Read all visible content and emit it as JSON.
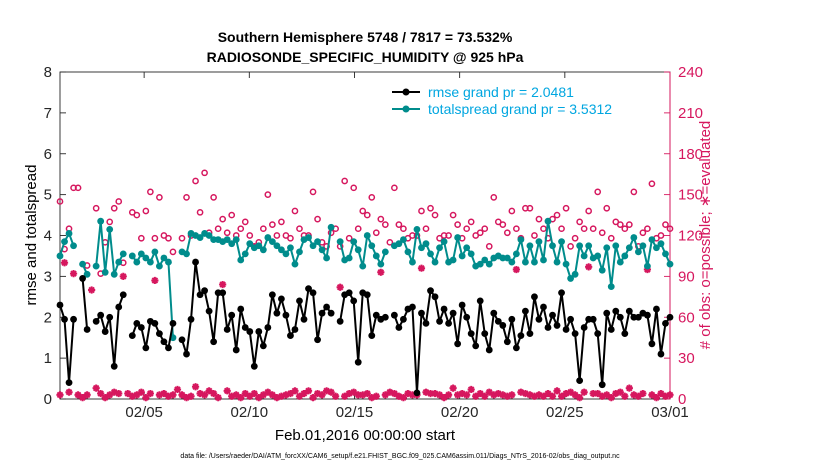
{
  "chart_data": {
    "type": "line",
    "title": "Southern Hemisphere 5748 / 7817 = 73.532%",
    "subtitle": "RADIOSONDE_SPECIFIC_HUMIDITY @ 925 hPa",
    "xlabel": "Feb.01,2016 00:00:00 start",
    "ylabel": "rmse and totalspread",
    "ylabel_right": "# of obs: o=possible; ∗=evaluated",
    "footnote": "data file: /Users/raeder/DAI/ATM_forcXX/CAM6_setup/f.e21.FHIST_BGC.f09_025.CAM6assim.011/Diags_NTrS_2016-02/obs_diag_output.nc",
    "x_ticks": [
      "02/05",
      "02/10",
      "02/15",
      "02/20",
      "02/25",
      "03/01"
    ],
    "x_tick_days": [
      4,
      9,
      14,
      19,
      24,
      29
    ],
    "xlim": [
      0.0,
      29.0
    ],
    "ylim": [
      0,
      8
    ],
    "y_ticks": [
      "0",
      "1",
      "2",
      "3",
      "4",
      "5",
      "6",
      "7",
      "8"
    ],
    "y2lim": [
      0,
      240
    ],
    "y2_ticks": [
      "0",
      "30",
      "60",
      "90",
      "120",
      "150",
      "180",
      "210",
      "240"
    ],
    "legend_position": "top-right",
    "colors": {
      "rmse": "#000000",
      "totalspread": "#008c8c",
      "obs": "#d6175e",
      "legend_text": "#00a6e0",
      "right_axis": "#d6175e"
    },
    "series": [
      {
        "name": "rmse grand pr = 2.0481",
        "key": "rmse",
        "values": [
          2.3,
          1.95,
          0.4,
          1.95,
          null,
          2.95,
          1.7,
          null,
          1.9,
          2.05,
          1.65,
          2.0,
          0.8,
          2.25,
          2.55,
          null,
          1.55,
          1.85,
          1.75,
          1.25,
          1.9,
          1.85,
          1.6,
          1.4,
          1.25,
          1.85,
          null,
          1.45,
          1.1,
          1.95,
          3.35,
          2.55,
          2.65,
          2.15,
          1.4,
          2.6,
          2.6,
          1.7,
          2.05,
          1.2,
          2.2,
          1.75,
          1.65,
          0.8,
          1.65,
          1.3,
          1.75,
          2.55,
          2.1,
          2.45,
          2.05,
          1.55,
          1.7,
          2.4,
          1.95,
          2.7,
          2.6,
          1.45,
          2.1,
          2.25,
          2.1,
          null,
          1.9,
          2.55,
          2.6,
          2.4,
          0.9,
          2.6,
          2.55,
          1.55,
          2.05,
          1.95,
          2.0,
          null,
          2.05,
          1.75,
          1.95,
          2.2,
          2.25,
          0.15,
          2.1,
          1.85,
          2.65,
          2.5,
          1.9,
          2.2,
          1.85,
          2.1,
          1.35,
          2.3,
          2.0,
          1.6,
          1.3,
          2.4,
          1.6,
          1.2,
          2.1,
          1.9,
          1.8,
          1.4,
          1.95,
          1.25,
          1.55,
          2.15,
          1.6,
          2.5,
          1.95,
          2.25,
          1.75,
          2.05,
          1.8,
          2.6,
          1.7,
          1.95,
          1.6,
          0.45,
          1.75,
          1.95,
          1.95,
          1.6,
          0.35,
          2.1,
          1.7,
          2.15,
          2.0,
          1.6,
          2.15,
          2.0,
          2.0,
          2.1,
          2.05,
          1.35,
          2.2,
          1.1,
          1.85,
          2.0
        ]
      },
      {
        "name": "totalspread grand pr = 3.5312",
        "key": "totalspread",
        "values": [
          3.5,
          3.85,
          4.05,
          3.75,
          null,
          3.3,
          3.05,
          null,
          3.25,
          4.35,
          3.1,
          4.15,
          3.05,
          3.35,
          3.55,
          null,
          3.5,
          3.35,
          3.55,
          3.45,
          3.35,
          3.6,
          3.25,
          3.45,
          3.35,
          1.5,
          null,
          3.6,
          3.55,
          4.05,
          4.0,
          3.95,
          4.05,
          4.0,
          3.9,
          3.9,
          3.85,
          3.9,
          3.8,
          3.9,
          3.4,
          3.55,
          3.8,
          3.7,
          3.75,
          3.65,
          3.95,
          3.85,
          3.75,
          3.65,
          3.55,
          3.7,
          3.3,
          3.6,
          3.9,
          3.95,
          3.75,
          3.85,
          3.65,
          3.45,
          4.2,
          null,
          3.85,
          3.4,
          3.45,
          3.85,
          3.65,
          3.25,
          4.0,
          3.75,
          3.5,
          3.3,
          3.6,
          null,
          3.75,
          3.8,
          3.9,
          3.6,
          3.35,
          4.15,
          3.7,
          3.8,
          3.55,
          3.35,
          3.7,
          3.85,
          3.35,
          3.4,
          3.95,
          3.5,
          3.7,
          3.55,
          3.25,
          3.3,
          3.4,
          3.3,
          3.45,
          3.5,
          3.45,
          3.45,
          3.35,
          3.55,
          3.9,
          3.35,
          3.75,
          3.35,
          3.85,
          3.4,
          4.35,
          3.75,
          3.35,
          3.85,
          3.3,
          2.95,
          3.05,
          3.75,
          3.5,
          3.75,
          3.45,
          3.5,
          3.15,
          3.7,
          2.75,
          3.75,
          3.35,
          3.5,
          3.7,
          3.95,
          3.6,
          3.75,
          3.25,
          3.9,
          3.7,
          3.8,
          3.55,
          3.3
        ]
      }
    ],
    "obs_possible": [
      145,
      110,
      125,
      155,
      155,
      null,
      98,
      null,
      140,
      92,
      115,
      130,
      140,
      145,
      100,
      null,
      137,
      135,
      118,
      138,
      152,
      118,
      148,
      120,
      118,
      108,
      null,
      118,
      148,
      120,
      160,
      137,
      166,
      122,
      148,
      125,
      132,
      122,
      135,
      120,
      125,
      130,
      120,
      112,
      115,
      125,
      150,
      128,
      120,
      130,
      120,
      118,
      138,
      125,
      120,
      120,
      152,
      132,
      115,
      112,
      122,
      125,
      112,
      160,
      118,
      155,
      125,
      138,
      135,
      148,
      122,
      132,
      128,
      115,
      155,
      128,
      125,
      118,
      120,
      120,
      138,
      125,
      140,
      135,
      118,
      120,
      120,
      135,
      128,
      118,
      125,
      130,
      120,
      122,
      125,
      112,
      148,
      130,
      128,
      122,
      138,
      125,
      118,
      140,
      140,
      120,
      132,
      125,
      118,
      132,
      135,
      125,
      140,
      112,
      118,
      130,
      125,
      138,
      125,
      152,
      122,
      140,
      118,
      130,
      128,
      125,
      128,
      152,
      112,
      122,
      125,
      158,
      118,
      120,
      128,
      125
    ],
    "obs_evaluated": [
      3,
      100,
      5,
      92,
      3,
      1,
      3,
      80,
      8,
      4,
      1,
      3,
      5,
      4,
      90,
      4,
      2,
      3,
      5,
      1,
      4,
      87,
      3,
      4,
      2,
      3,
      7,
      3,
      1,
      2,
      9,
      4,
      3,
      6,
      4,
      1,
      84,
      6,
      2,
      3,
      1,
      4,
      2,
      4,
      1,
      3,
      5,
      3,
      1,
      2,
      3,
      4,
      6,
      2,
      4,
      6,
      1,
      4,
      3,
      6,
      5,
      2,
      82,
      2,
      4,
      5,
      3,
      3,
      4,
      1,
      2,
      93,
      3,
      5,
      4,
      2,
      1,
      4,
      3,
      3,
      96,
      5,
      4,
      4,
      3,
      1,
      3,
      8,
      3,
      4,
      3,
      7,
      2,
      4,
      2,
      5,
      3,
      4,
      3,
      2,
      3,
      95,
      5,
      4,
      3,
      2,
      3,
      2,
      4,
      2,
      6,
      2,
      4,
      5,
      3,
      1,
      5,
      97,
      4,
      4,
      2,
      3,
      1,
      4,
      5,
      2,
      8,
      3,
      2,
      4,
      95,
      3,
      1,
      4,
      2,
      3
    ]
  }
}
